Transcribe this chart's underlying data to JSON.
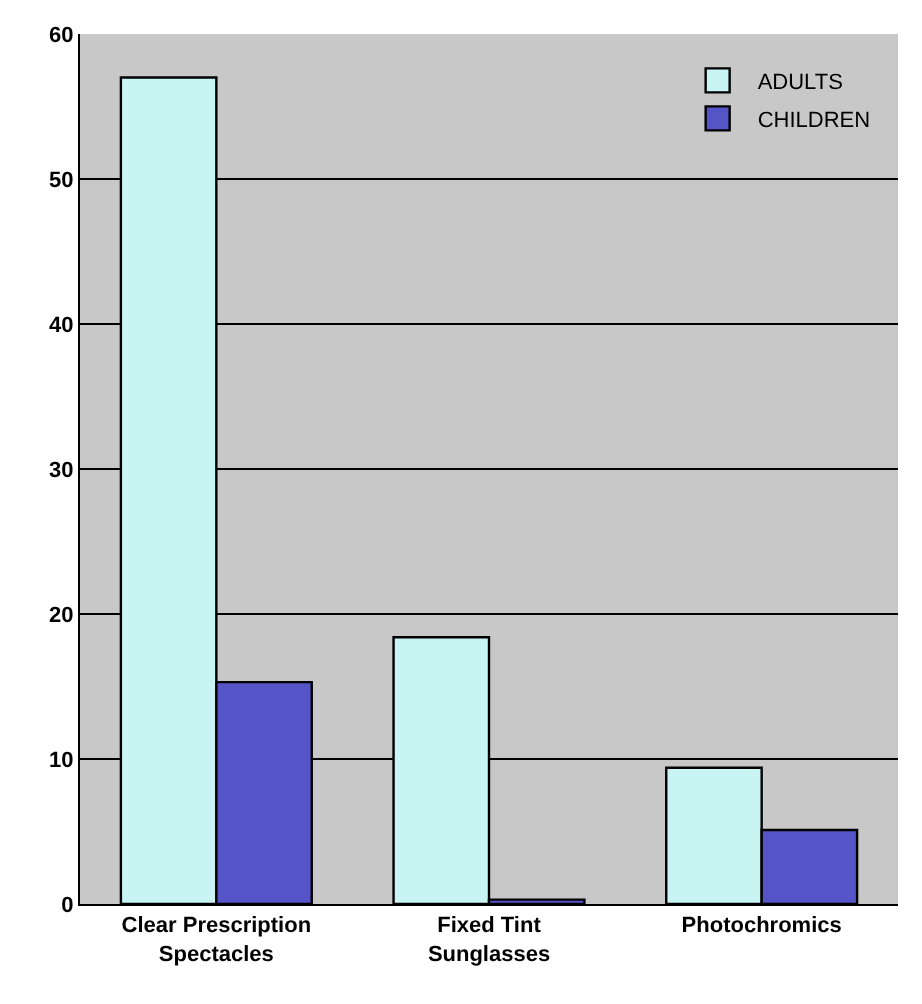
{
  "chart_data": {
    "type": "bar",
    "categories": [
      "Clear Prescription Spectacles",
      "Fixed Tint Sunglasses",
      "Photochromics"
    ],
    "series": [
      {
        "name": "ADULTS",
        "color": "#c8f4f4",
        "values": [
          57,
          18.4,
          9.4
        ]
      },
      {
        "name": "CHILDREN",
        "color": "#5555c8",
        "values": [
          15.3,
          0.3,
          5.1
        ]
      }
    ],
    "ylim": [
      0,
      60
    ],
    "yticks": [
      0,
      10,
      20,
      30,
      40,
      50,
      60
    ],
    "grid": "y",
    "legend": "top right"
  }
}
